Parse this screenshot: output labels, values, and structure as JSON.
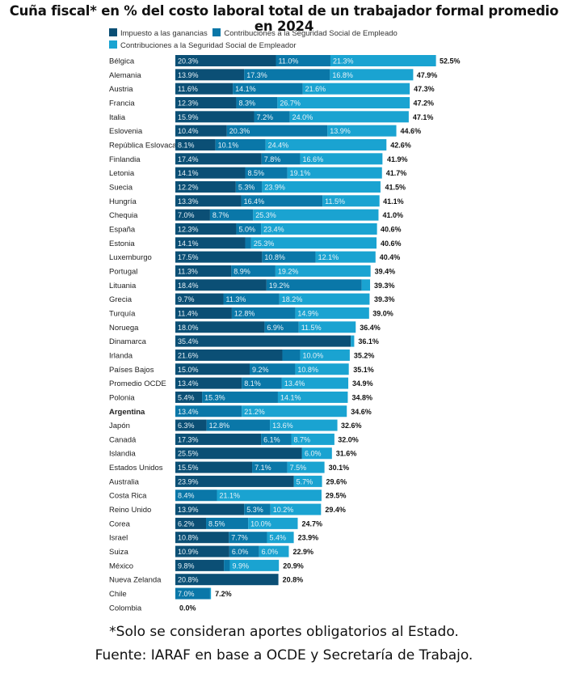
{
  "chart_data": {
    "type": "bar",
    "orientation": "horizontal",
    "stacked": true,
    "title": "Cuña fiscal*  en % del costo laboral total de un trabajador  formal promedio en 2024",
    "xlabel": "",
    "ylabel": "",
    "xlim": [
      0,
      52.5
    ],
    "grid": false,
    "legend_position": "top",
    "legend": [
      {
        "name": "Impuesto a las ganancias",
        "color": "#0b4f75"
      },
      {
        "name": "Contribuciones a la Seguridad Social de Empleado",
        "color": "#0a77a8"
      },
      {
        "name": "Contribuciones a la Seguridad Social de Empleador",
        "color": "#1aa3d1"
      }
    ],
    "categories": [
      "Bélgica",
      "Alemania",
      "Austria",
      "Francia",
      "Italia",
      "Eslovenia",
      "República Eslovaca",
      "Finlandia",
      "Letonia",
      "Suecia",
      "Hungría",
      "Chequia",
      "España",
      "Estonia",
      "Luxemburgo",
      "Portugal",
      "Lituania",
      "Grecia",
      "Turquía",
      "Noruega",
      "Dinamarca",
      "Irlanda",
      "Países Bajos",
      "Promedio OCDE",
      "Polonia",
      "Argentina",
      "Japón",
      "Canadá",
      "Islandia",
      "Estados Unidos",
      "Australia",
      "Costa Rica",
      "Reino Unido",
      "Corea",
      "Israel",
      "Suiza",
      "México",
      "Nueva Zelanda",
      "Chile",
      "Colombia"
    ],
    "highlight_category": "Argentina",
    "series": [
      {
        "name": "Impuesto a las ganancias",
        "values": [
          20.3,
          13.9,
          11.6,
          12.3,
          15.9,
          10.4,
          8.1,
          17.4,
          14.1,
          12.2,
          13.3,
          7.0,
          12.3,
          14.1,
          17.5,
          11.3,
          18.4,
          9.7,
          11.4,
          18.0,
          35.4,
          21.6,
          15.0,
          13.4,
          5.4,
          0.0,
          6.3,
          17.3,
          25.5,
          15.5,
          23.9,
          0.0,
          13.9,
          6.2,
          10.8,
          10.9,
          9.8,
          20.8,
          0.0,
          0.0
        ]
      },
      {
        "name": "Contribuciones a la Seguridad Social de Empleado",
        "values": [
          11.0,
          17.3,
          14.1,
          8.3,
          7.2,
          20.3,
          10.1,
          7.8,
          8.5,
          5.3,
          16.4,
          8.7,
          5.0,
          1.2,
          10.8,
          8.9,
          19.2,
          11.3,
          12.8,
          6.9,
          0.0,
          3.6,
          9.2,
          8.1,
          15.3,
          13.4,
          12.8,
          6.1,
          0.1,
          7.1,
          0.0,
          8.4,
          5.3,
          8.5,
          7.7,
          6.0,
          1.2,
          0.0,
          7.0,
          0.0
        ]
      },
      {
        "name": "Contribuciones a la Seguridad Social de Empleador",
        "values": [
          21.3,
          16.8,
          21.6,
          26.7,
          24.0,
          13.9,
          24.4,
          16.6,
          19.1,
          23.9,
          11.5,
          25.3,
          23.4,
          25.3,
          12.1,
          19.2,
          1.7,
          18.2,
          14.9,
          11.5,
          0.7,
          10.0,
          10.8,
          13.4,
          14.1,
          21.2,
          13.6,
          8.7,
          6.0,
          7.5,
          5.7,
          21.1,
          10.2,
          10.0,
          5.4,
          6.0,
          9.9,
          0.0,
          0.2,
          0.0
        ]
      }
    ],
    "segment_labels": [
      [
        "20.3%",
        "11.0%",
        "21.3%"
      ],
      [
        "13.9%",
        "17.3%",
        "16.8%"
      ],
      [
        "11.6%",
        "14.1%",
        "21.6%"
      ],
      [
        "12.3%",
        "8.3%",
        "26.7%"
      ],
      [
        "15.9%",
        "7.2%",
        "24.0%"
      ],
      [
        "10.4%",
        "20.3%",
        "13.9%"
      ],
      [
        "8.1%",
        "10.1%",
        "24.4%"
      ],
      [
        "17.4%",
        "7.8%",
        "16.6%"
      ],
      [
        "14.1%",
        "8.5%",
        "19.1%"
      ],
      [
        "12.2%",
        "5.3%",
        "23.9%"
      ],
      [
        "13.3%",
        "16.4%",
        "11.5%"
      ],
      [
        "7.0%",
        "8.7%",
        "25.3%"
      ],
      [
        "12.3%",
        "5.0%",
        "23.4%"
      ],
      [
        "14.1%",
        "",
        "25.3%"
      ],
      [
        "17.5%",
        "10.8%",
        "12.1%"
      ],
      [
        "11.3%",
        "8.9%",
        "19.2%"
      ],
      [
        "18.4%",
        "19.2%",
        ""
      ],
      [
        "9.7%",
        "11.3%",
        "18.2%"
      ],
      [
        "11.4%",
        "12.8%",
        "14.9%"
      ],
      [
        "18.0%",
        "6.9%",
        "11.5%"
      ],
      [
        "35.4%",
        "",
        ""
      ],
      [
        "21.6%",
        "",
        "10.0%"
      ],
      [
        "15.0%",
        "9.2%",
        "10.8%"
      ],
      [
        "13.4%",
        "8.1%",
        "13.4%"
      ],
      [
        "5.4%",
        "15.3%",
        "14.1%"
      ],
      [
        "",
        "13.4%",
        "21.2%"
      ],
      [
        "6.3%",
        "12.8%",
        "13.6%"
      ],
      [
        "17.3%",
        "6.1%",
        "8.7%"
      ],
      [
        "25.5%",
        "",
        "6.0%"
      ],
      [
        "15.5%",
        "7.1%",
        "7.5%"
      ],
      [
        "23.9%",
        "",
        "5.7%"
      ],
      [
        "",
        "8.4%",
        "21.1%"
      ],
      [
        "13.9%",
        "5.3%",
        "10.2%"
      ],
      [
        "6.2%",
        "8.5%",
        "10.0%"
      ],
      [
        "10.8%",
        "7.7%",
        "5.4%"
      ],
      [
        "10.9%",
        "6.0%",
        "6.0%"
      ],
      [
        "9.8%",
        "",
        "9.9%"
      ],
      [
        "20.8%",
        "",
        ""
      ],
      [
        "",
        "7.0%",
        ""
      ],
      [
        "",
        "",
        ""
      ]
    ],
    "totals": [
      "52.5%",
      "47.9%",
      "47.3%",
      "47.2%",
      "47.1%",
      "44.6%",
      "42.6%",
      "41.9%",
      "41.7%",
      "41.5%",
      "41.1%",
      "41.0%",
      "40.6%",
      "40.6%",
      "40.4%",
      "39.4%",
      "39.3%",
      "39.3%",
      "39.0%",
      "36.4%",
      "36.1%",
      "35.2%",
      "35.1%",
      "34.9%",
      "34.8%",
      "34.6%",
      "32.6%",
      "32.0%",
      "31.6%",
      "30.1%",
      "29.6%",
      "29.5%",
      "29.4%",
      "24.7%",
      "23.9%",
      "22.9%",
      "20.9%",
      "20.8%",
      "7.2%",
      "0.0%"
    ],
    "total_values": [
      52.5,
      47.9,
      47.3,
      47.2,
      47.1,
      44.6,
      42.6,
      41.9,
      41.7,
      41.5,
      41.1,
      41.0,
      40.6,
      40.6,
      40.4,
      39.4,
      39.3,
      39.3,
      39.0,
      36.4,
      36.1,
      35.2,
      35.1,
      34.9,
      34.8,
      34.6,
      32.6,
      32.0,
      31.6,
      30.1,
      29.6,
      29.5,
      29.4,
      24.7,
      23.9,
      22.9,
      20.9,
      20.8,
      7.2,
      0.0
    ]
  },
  "footer": {
    "note": "*Solo se consideran aportes obligatorios al Estado.",
    "source": "Fuente: IARAF en base a OCDE y Secretaría de Trabajo."
  }
}
